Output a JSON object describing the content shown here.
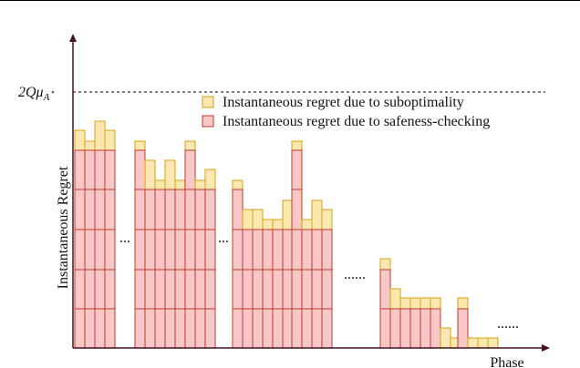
{
  "axes": {
    "y_label": "Instantaneous Regret",
    "x_label": "Phase"
  },
  "reference_line": {
    "label_main": "2Qμ",
    "label_sub": "A",
    "label_sup": "⋆"
  },
  "legend": {
    "items": [
      {
        "label": "Instantaneous regret due to suboptimality"
      },
      {
        "label": "Instantaneous regret due to safeness-checking"
      }
    ]
  },
  "ellipses": [
    "...",
    "...",
    "......",
    "......"
  ]
}
